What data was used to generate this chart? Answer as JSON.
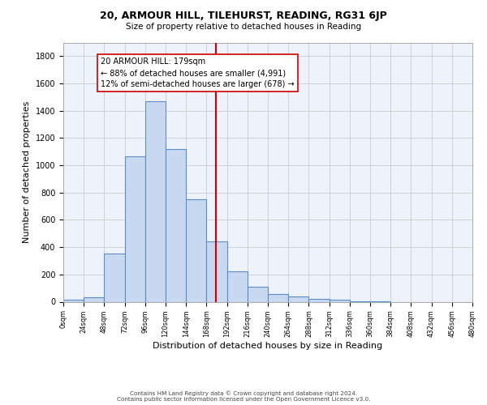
{
  "title": "20, ARMOUR HILL, TILEHURST, READING, RG31 6JP",
  "subtitle": "Size of property relative to detached houses in Reading",
  "xlabel": "Distribution of detached houses by size in Reading",
  "ylabel": "Number of detached properties",
  "bar_color": "#c8d8f0",
  "bar_edge_color": "#5b8ec4",
  "bin_edges": [
    0,
    24,
    48,
    72,
    96,
    120,
    144,
    168,
    192,
    216,
    240,
    264,
    288,
    312,
    336,
    360,
    384,
    408,
    432,
    456,
    480
  ],
  "bin_counts": [
    15,
    30,
    355,
    1065,
    1470,
    1120,
    750,
    440,
    225,
    110,
    55,
    40,
    20,
    15,
    5,
    5,
    0,
    0,
    0,
    0
  ],
  "property_value": 179,
  "vline_color": "#cc0000",
  "annotation_text": "20 ARMOUR HILL: 179sqm\n← 88% of detached houses are smaller (4,991)\n12% of semi-detached houses are larger (678) →",
  "annotation_box_color": "#ffffff",
  "annotation_box_edge_color": "#cc0000",
  "ytick_labels": [
    "0",
    "200",
    "400",
    "600",
    "800",
    "1000",
    "1200",
    "1400",
    "1600",
    "1800"
  ],
  "xtick_labels": [
    "0sqm",
    "24sqm",
    "48sqm",
    "72sqm",
    "96sqm",
    "120sqm",
    "144sqm",
    "168sqm",
    "192sqm",
    "216sqm",
    "240sqm",
    "264sqm",
    "288sqm",
    "312sqm",
    "336sqm",
    "360sqm",
    "384sqm",
    "408sqm",
    "432sqm",
    "456sqm",
    "480sqm"
  ],
  "grid_color": "#cccccc",
  "background_color": "#eef2fb",
  "footnote1": "Contains HM Land Registry data © Crown copyright and database right 2024.",
  "footnote2": "Contains public sector information licensed under the Open Government Licence v3.0."
}
